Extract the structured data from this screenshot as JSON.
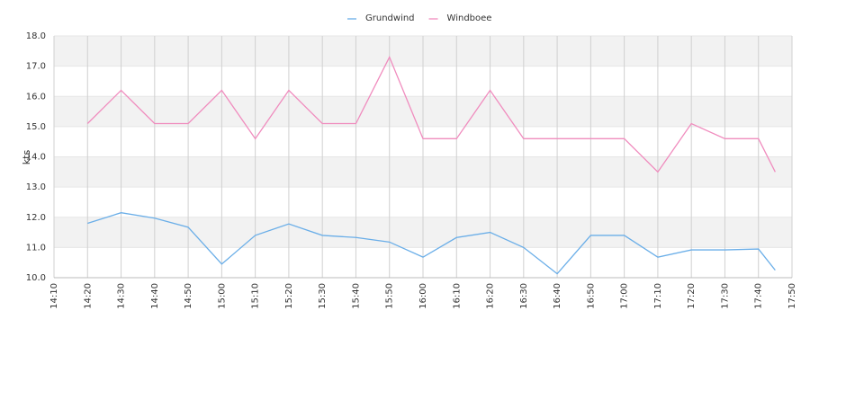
{
  "chart_data": {
    "type": "line",
    "y_label": "kts",
    "x": [
      "14:20",
      "14:30",
      "14:40",
      "14:50",
      "15:00",
      "15:10",
      "15:20",
      "15:30",
      "15:40",
      "15:50",
      "16:00",
      "16:10",
      "16:20",
      "16:30",
      "16:40",
      "16:50",
      "17:00",
      "17:10",
      "17:20",
      "17:30",
      "17:40",
      "17:45"
    ],
    "series": [
      {
        "name": "Grundwind",
        "color": "#6aaee8",
        "values": [
          11.8,
          12.15,
          11.97,
          11.67,
          10.45,
          11.4,
          11.78,
          11.4,
          11.33,
          11.18,
          10.68,
          11.33,
          11.5,
          11.0,
          10.13,
          11.4,
          11.4,
          10.68,
          10.92,
          10.92,
          10.95,
          10.25
        ]
      },
      {
        "name": "Windboee",
        "color": "#f08cbe",
        "values": [
          15.1,
          16.2,
          15.1,
          15.1,
          16.2,
          14.6,
          16.2,
          15.1,
          15.1,
          17.3,
          14.6,
          14.6,
          16.2,
          14.6,
          14.6,
          14.6,
          14.6,
          13.5,
          15.1,
          14.6,
          14.6,
          13.5
        ]
      }
    ],
    "xlim": [
      "14:10",
      "17:50"
    ],
    "xticks": [
      "14:10",
      "14:20",
      "14:30",
      "14:40",
      "14:50",
      "15:00",
      "15:10",
      "15:20",
      "15:30",
      "15:40",
      "15:50",
      "16:00",
      "16:10",
      "16:20",
      "16:30",
      "16:40",
      "16:50",
      "17:00",
      "17:10",
      "17:20",
      "17:30",
      "17:40",
      "17:50"
    ],
    "ylim": [
      10,
      18
    ],
    "yticks": [
      {
        "value": 10,
        "label": "10.0"
      },
      {
        "value": 11,
        "label": "11.0"
      },
      {
        "value": 12,
        "label": "12.0"
      },
      {
        "value": 13,
        "label": "13.0"
      },
      {
        "value": 14,
        "label": "14.0"
      },
      {
        "value": 15,
        "label": "15.0"
      },
      {
        "value": 16,
        "label": "16.0"
      },
      {
        "value": 17,
        "label": "17.0"
      },
      {
        "value": 18,
        "label": "18.0"
      }
    ],
    "grid": true,
    "legend": "top"
  }
}
